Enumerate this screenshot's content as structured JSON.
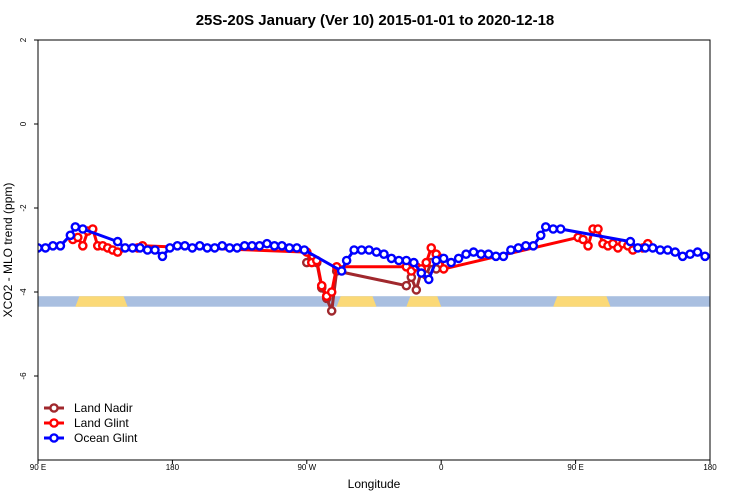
{
  "chart_data": {
    "type": "line",
    "title": "25S-20S January (Ver 10)   2015-01-01 to 2020-12-18",
    "xlabel": "Longitude",
    "ylabel": "XCO2 - MLO trend (ppm)",
    "xlim": [
      -90,
      180
    ],
    "ylim": [
      -8,
      2
    ],
    "xticks": [
      {
        "value": -90,
        "label": "90 E"
      },
      {
        "value": -36,
        "label": "180"
      },
      {
        "value": 18,
        "label": "90 W"
      },
      {
        "value": 72,
        "label": "0"
      },
      {
        "value": 126,
        "label": "90 E"
      },
      {
        "value": 180,
        "label": "180"
      }
    ],
    "yticks": [
      {
        "value": 2,
        "label": "2"
      },
      {
        "value": 0,
        "label": "0"
      },
      {
        "value": -2,
        "label": "-2"
      },
      {
        "value": -4,
        "label": "-4"
      },
      {
        "value": -6,
        "label": "-6"
      }
    ],
    "land_band": {
      "y_top": -4.1,
      "y_bottom": -4.35,
      "ocean_color": "#a9bfe0",
      "land_color": "#fbd977",
      "land_segments": [
        [
          -75,
          -54
        ],
        [
          30,
          46
        ],
        [
          58,
          72
        ],
        [
          117,
          140
        ]
      ]
    },
    "legend": {
      "position": "bottom-left"
    },
    "series": [
      {
        "name": "Land Nadir",
        "color": "#a0282d",
        "points": [
          [
            18,
            -3.3
          ],
          [
            20,
            -3.2
          ],
          [
            22,
            -3.3
          ],
          [
            24,
            -3.9
          ],
          [
            26,
            -4.15
          ],
          [
            28,
            -4.45
          ],
          [
            30,
            -3.5
          ],
          [
            58,
            -3.85
          ],
          [
            60,
            -3.65
          ],
          [
            62,
            -3.95
          ],
          [
            64,
            -3.5
          ],
          [
            66,
            -3.6
          ],
          [
            68,
            -3.3
          ],
          [
            70,
            -3.45
          ]
        ]
      },
      {
        "name": "Land Glint",
        "color": "#ff0000",
        "points": [
          [
            -76,
            -2.75
          ],
          [
            -74,
            -2.7
          ],
          [
            -72,
            -2.9
          ],
          [
            -70,
            -2.55
          ],
          [
            -68,
            -2.5
          ],
          [
            -66,
            -2.9
          ],
          [
            -64,
            -2.9
          ],
          [
            -62,
            -2.95
          ],
          [
            -60,
            -3.0
          ],
          [
            -58,
            -3.05
          ],
          [
            -50,
            -2.95
          ],
          [
            -48,
            -2.9
          ],
          [
            18,
            -3.05
          ],
          [
            20,
            -3.3
          ],
          [
            22,
            -3.25
          ],
          [
            24,
            -3.85
          ],
          [
            26,
            -4.1
          ],
          [
            28,
            -4.0
          ],
          [
            30,
            -3.4
          ],
          [
            58,
            -3.4
          ],
          [
            60,
            -3.5
          ],
          [
            62,
            -3.4
          ],
          [
            64,
            -3.45
          ],
          [
            66,
            -3.3
          ],
          [
            68,
            -2.95
          ],
          [
            70,
            -3.1
          ],
          [
            72,
            -3.2
          ],
          [
            73,
            -3.45
          ],
          [
            127,
            -2.7
          ],
          [
            129,
            -2.75
          ],
          [
            131,
            -2.9
          ],
          [
            133,
            -2.5
          ],
          [
            135,
            -2.5
          ],
          [
            137,
            -2.85
          ],
          [
            139,
            -2.9
          ],
          [
            141,
            -2.85
          ],
          [
            143,
            -2.95
          ],
          [
            145,
            -2.85
          ],
          [
            147,
            -2.9
          ],
          [
            149,
            -3.0
          ],
          [
            153,
            -2.95
          ],
          [
            155,
            -2.85
          ]
        ]
      },
      {
        "name": "Ocean Glint",
        "color": "#0000ff",
        "points": [
          [
            -90,
            -2.95
          ],
          [
            -87,
            -2.95
          ],
          [
            -84,
            -2.9
          ],
          [
            -81,
            -2.9
          ],
          [
            -77,
            -2.65
          ],
          [
            -75,
            -2.45
          ],
          [
            -72,
            -2.5
          ],
          [
            -58,
            -2.8
          ],
          [
            -55,
            -2.95
          ],
          [
            -52,
            -2.95
          ],
          [
            -49,
            -2.95
          ],
          [
            -46,
            -3.0
          ],
          [
            -43,
            -3.0
          ],
          [
            -40,
            -3.15
          ],
          [
            -37,
            -2.95
          ],
          [
            -34,
            -2.9
          ],
          [
            -31,
            -2.9
          ],
          [
            -28,
            -2.95
          ],
          [
            -25,
            -2.9
          ],
          [
            -22,
            -2.95
          ],
          [
            -19,
            -2.95
          ],
          [
            -16,
            -2.9
          ],
          [
            -13,
            -2.95
          ],
          [
            -10,
            -2.95
          ],
          [
            -7,
            -2.9
          ],
          [
            -4,
            -2.9
          ],
          [
            -1,
            -2.9
          ],
          [
            2,
            -2.85
          ],
          [
            5,
            -2.9
          ],
          [
            8,
            -2.9
          ],
          [
            11,
            -2.95
          ],
          [
            14,
            -2.95
          ],
          [
            17,
            -3.0
          ],
          [
            32,
            -3.5
          ],
          [
            34,
            -3.25
          ],
          [
            37,
            -3.0
          ],
          [
            40,
            -3.0
          ],
          [
            43,
            -3.0
          ],
          [
            46,
            -3.05
          ],
          [
            49,
            -3.1
          ],
          [
            52,
            -3.2
          ],
          [
            55,
            -3.25
          ],
          [
            58,
            -3.25
          ],
          [
            61,
            -3.3
          ],
          [
            64,
            -3.55
          ],
          [
            67,
            -3.7
          ],
          [
            70,
            -3.25
          ],
          [
            73,
            -3.2
          ],
          [
            76,
            -3.3
          ],
          [
            79,
            -3.2
          ],
          [
            82,
            -3.1
          ],
          [
            85,
            -3.05
          ],
          [
            88,
            -3.1
          ],
          [
            91,
            -3.1
          ],
          [
            94,
            -3.15
          ],
          [
            97,
            -3.15
          ],
          [
            100,
            -3.0
          ],
          [
            103,
            -2.95
          ],
          [
            106,
            -2.9
          ],
          [
            109,
            -2.9
          ],
          [
            112,
            -2.65
          ],
          [
            114,
            -2.45
          ],
          [
            117,
            -2.5
          ],
          [
            120,
            -2.5
          ],
          [
            148,
            -2.8
          ],
          [
            151,
            -2.95
          ],
          [
            154,
            -2.95
          ],
          [
            157,
            -2.95
          ],
          [
            160,
            -3.0
          ],
          [
            163,
            -3.0
          ],
          [
            166,
            -3.05
          ],
          [
            169,
            -3.15
          ],
          [
            172,
            -3.1
          ],
          [
            175,
            -3.05
          ],
          [
            178,
            -3.15
          ]
        ]
      }
    ]
  }
}
